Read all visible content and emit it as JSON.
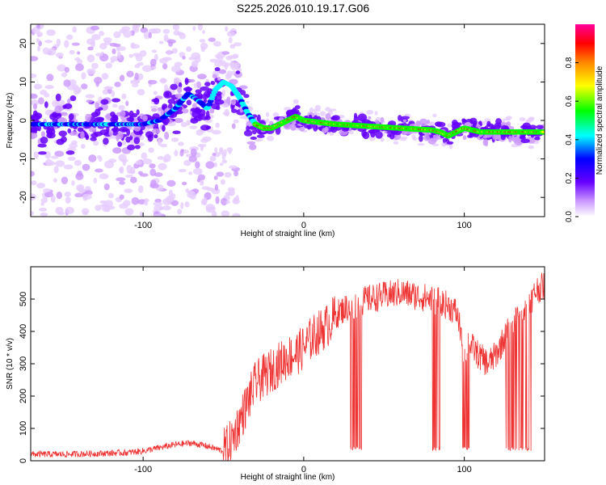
{
  "title": "S225.2026.010.19.17.G06",
  "chart_data": [
    {
      "type": "heatmap",
      "xlabel": "Height of straight line (km)",
      "ylabel": "Frequency (Hz)",
      "xlim": [
        -170,
        150
      ],
      "ylim": [
        -25,
        25
      ],
      "xticks": [
        -100,
        0,
        100
      ],
      "yticks": [
        -20,
        -10,
        0,
        10,
        20
      ],
      "colorbar": {
        "label": "Normalized spectral amplitude",
        "range": [
          0,
          1
        ],
        "ticks": [
          "0.0",
          "0.2",
          "0.4",
          "0.6",
          "0.8"
        ],
        "colors": [
          "#ffffff",
          "#cc99ff",
          "#6600ff",
          "#0000ff",
          "#00ffff",
          "#00ff00",
          "#ffff00",
          "#ff8800",
          "#ff0000",
          "#ff0099"
        ]
      },
      "ridge": {
        "x": [
          -170,
          -150,
          -120,
          -100,
          -90,
          -80,
          -72,
          -65,
          -60,
          -55,
          -50,
          -45,
          -40,
          -35,
          -30,
          -25,
          -20,
          -15,
          -10,
          -5,
          0,
          10,
          20,
          40,
          60,
          80,
          85,
          90,
          95,
          100,
          110,
          120,
          130,
          140,
          148
        ],
        "y": [
          -1,
          -1,
          -1,
          -1,
          0,
          3,
          7,
          5,
          3,
          8,
          10,
          9,
          6,
          2,
          -1,
          -2,
          -2,
          -1,
          0,
          1,
          0,
          -0.5,
          -1,
          -1.5,
          -2,
          -2.5,
          -3,
          -4,
          -3,
          -2,
          -3,
          -3,
          -3,
          -3,
          -3
        ]
      }
    },
    {
      "type": "line",
      "xlabel": "Height of straight line (km)",
      "ylabel": "SNR (10 * v/v)",
      "xlim": [
        -170,
        150
      ],
      "ylim": [
        0,
        600
      ],
      "xticks": [
        -100,
        0,
        100
      ],
      "yticks": [
        0,
        100,
        200,
        300,
        400,
        500
      ],
      "color": "#ee3333",
      "series": [
        {
          "x": [
            -170,
            -150,
            -130,
            -110,
            -100,
            -90,
            -80,
            -70,
            -60,
            -50,
            -45,
            -40,
            -35,
            -30,
            -25,
            -20,
            -15,
            -10,
            -5,
            0,
            5,
            10,
            15,
            20,
            25,
            30,
            40,
            50,
            60,
            70,
            80,
            85,
            90,
            95,
            98,
            100,
            102,
            105,
            110,
            115,
            120,
            125,
            130,
            135,
            140,
            145,
            150
          ],
          "values": [
            20,
            20,
            22,
            25,
            30,
            40,
            50,
            55,
            45,
            30,
            60,
            120,
            180,
            240,
            260,
            280,
            300,
            320,
            330,
            350,
            380,
            400,
            420,
            450,
            470,
            480,
            500,
            510,
            520,
            510,
            500,
            490,
            480,
            460,
            400,
            300,
            380,
            350,
            320,
            300,
            330,
            380,
            420,
            450,
            480,
            530,
            540
          ]
        }
      ],
      "dropouts": [
        [
          29,
          36
        ],
        [
          80,
          86
        ],
        [
          99,
          103
        ],
        [
          126,
          142
        ]
      ]
    }
  ]
}
